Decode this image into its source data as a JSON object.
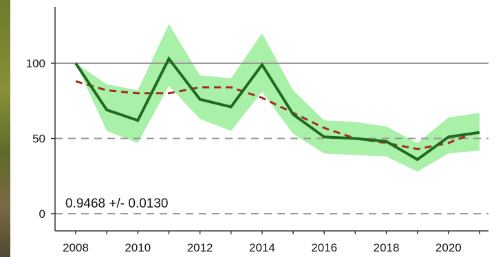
{
  "chart_data": {
    "type": "line",
    "title": "",
    "xlabel": "",
    "ylabel": "",
    "x": [
      2008,
      2009,
      2010,
      2011,
      2012,
      2013,
      2014,
      2015,
      2016,
      2017,
      2018,
      2019,
      2020,
      2021
    ],
    "xlim": [
      2008,
      2021
    ],
    "ylim": [
      0,
      125
    ],
    "x_ticks": [
      2008,
      2010,
      2012,
      2014,
      2016,
      2018,
      2020
    ],
    "y_ticks": [
      0,
      50,
      100
    ],
    "reference_lines": [
      {
        "y": 100,
        "style": "solid",
        "color": "#9a9a9a"
      },
      {
        "y": 50,
        "style": "dashed",
        "color": "#9a9a9a"
      },
      {
        "y": 0,
        "style": "dashed",
        "color": "#9a9a9a"
      }
    ],
    "series": [
      {
        "role": "index",
        "color": "#1e6b1e",
        "values": [
          100,
          69,
          62,
          103,
          76,
          71,
          99,
          66,
          51,
          50,
          48,
          36,
          51,
          54
        ]
      },
      {
        "role": "confidence-band",
        "color": "#a9f0a9",
        "upper": [
          100,
          86,
          82,
          126,
          92,
          90,
          120,
          82,
          62,
          61,
          58,
          47,
          64,
          67
        ],
        "lower": [
          100,
          55,
          47,
          85,
          63,
          55,
          81,
          53,
          40,
          39,
          38,
          28,
          40,
          42
        ]
      },
      {
        "role": "smoothed-trend",
        "color": "#a42a1c",
        "style": "dashed",
        "values": [
          88,
          82,
          80,
          80,
          84,
          84,
          77,
          67,
          57,
          50,
          47,
          43,
          47,
          55
        ]
      }
    ],
    "annotation": "0.9468 +/- 0.0130"
  }
}
